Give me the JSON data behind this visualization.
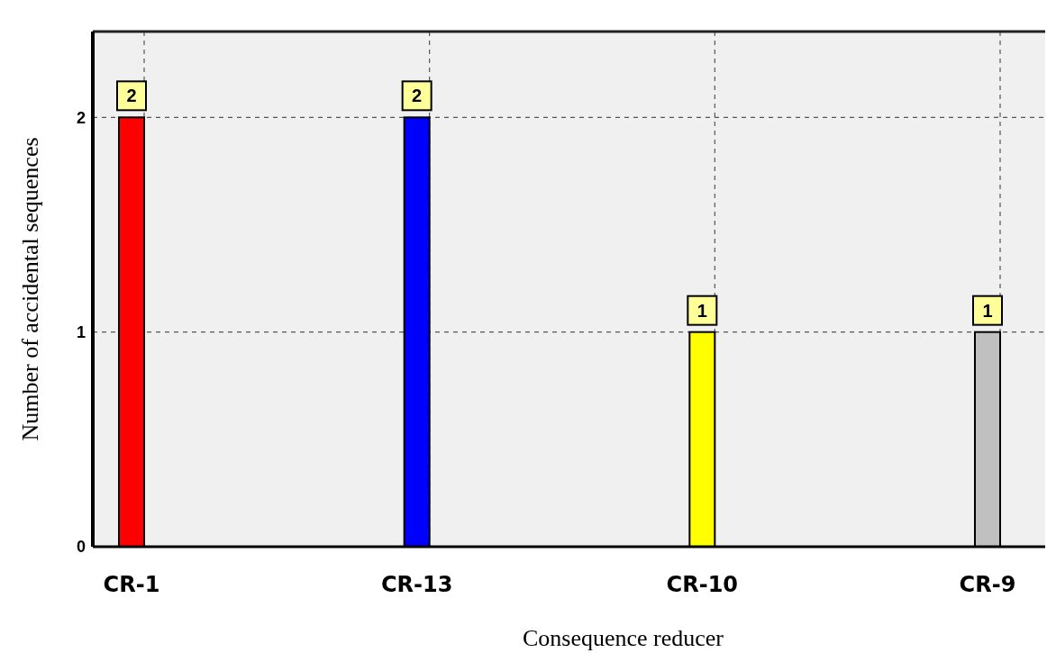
{
  "chart_data": {
    "type": "bar",
    "xlabel": "Consequence reducer",
    "ylabel": "Number of accidental sequences",
    "categories": [
      "CR-1",
      "CR-13",
      "CR-10",
      "CR-9"
    ],
    "values": [
      2,
      2,
      1,
      1
    ],
    "colors": [
      "#ff0000",
      "#0000ff",
      "#ffff00",
      "#c0c0c0"
    ],
    "ylim": [
      0,
      2.4
    ],
    "yticks": [
      0,
      1,
      2
    ],
    "grid": true,
    "data_labels": true
  }
}
